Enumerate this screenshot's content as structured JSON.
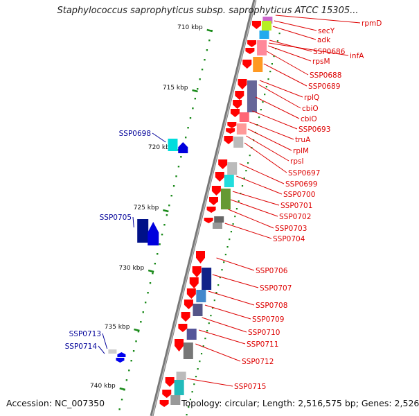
{
  "title": "Staphylococcus saprophyticus subsp. saprophyticus ATCC 15305...",
  "accession": "Accession: NC_007350",
  "topology": "Topology: circular; Length: 2,516,575 bp; Genes: 2,526",
  "colors": {
    "backbone": "#888888",
    "tick": "#1a8a1a",
    "right_label": "#dd0000",
    "left_label": "#000099"
  },
  "ticks": [
    "710 kbp",
    "715 kbp",
    "720 kbp",
    "725 kbp",
    "730 kbp",
    "735 kbp",
    "740 kbp"
  ],
  "left_labels": [
    "SSP0698",
    "SSP0705",
    "SSP0713",
    "SSP0714"
  ],
  "right_labels": [
    "rpmD",
    "secY",
    "adk",
    "SSP0686",
    "infA",
    "rpsM",
    "SSP0688",
    "SSP0689",
    "rplQ",
    "cbiO",
    "cbiO",
    "SSP0693",
    "truA",
    "rplM",
    "rpsI",
    "SSP0697",
    "SSP0699",
    "SSP0700",
    "SSP0701",
    "SSP0702",
    "SSP0703",
    "SSP0704",
    "SSP0706",
    "SSP0707",
    "SSP0708",
    "SSP0709",
    "SSP0710",
    "SSP0711",
    "SSP0712",
    "SSP0715"
  ]
}
